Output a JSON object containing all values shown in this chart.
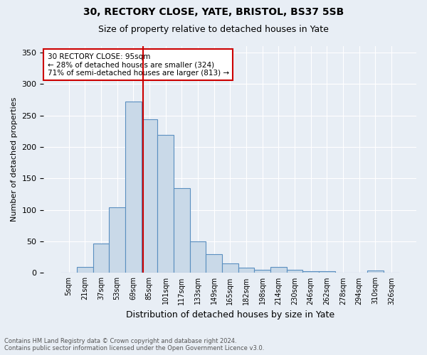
{
  "title1": "30, RECTORY CLOSE, YATE, BRISTOL, BS37 5SB",
  "title2": "Size of property relative to detached houses in Yate",
  "xlabel": "Distribution of detached houses by size in Yate",
  "ylabel": "Number of detached properties",
  "footnote": "Contains HM Land Registry data © Crown copyright and database right 2024.\nContains public sector information licensed under the Open Government Licence v3.0.",
  "bin_labels": [
    "5sqm",
    "21sqm",
    "37sqm",
    "53sqm",
    "69sqm",
    "85sqm",
    "101sqm",
    "117sqm",
    "133sqm",
    "149sqm",
    "165sqm",
    "182sqm",
    "198sqm",
    "214sqm",
    "230sqm",
    "246sqm",
    "262sqm",
    "278sqm",
    "294sqm",
    "310sqm",
    "326sqm"
  ],
  "bar_values": [
    0,
    10,
    47,
    104,
    272,
    244,
    219,
    135,
    50,
    30,
    15,
    8,
    5,
    10,
    5,
    3,
    3,
    0,
    0,
    4,
    0
  ],
  "bar_color": "#c9d9e8",
  "bar_edge_color": "#5a8fc0",
  "property_line_x": 4.625,
  "vline_color": "#cc0000",
  "annotation_text": "30 RECTORY CLOSE: 95sqm\n← 28% of detached houses are smaller (324)\n71% of semi-detached houses are larger (813) →",
  "annotation_box_color": "#cc0000",
  "ylim": [
    0,
    360
  ],
  "yticks": [
    0,
    50,
    100,
    150,
    200,
    250,
    300,
    350
  ],
  "background_color": "#e8eef5",
  "plot_bg_color": "#e8eef5"
}
